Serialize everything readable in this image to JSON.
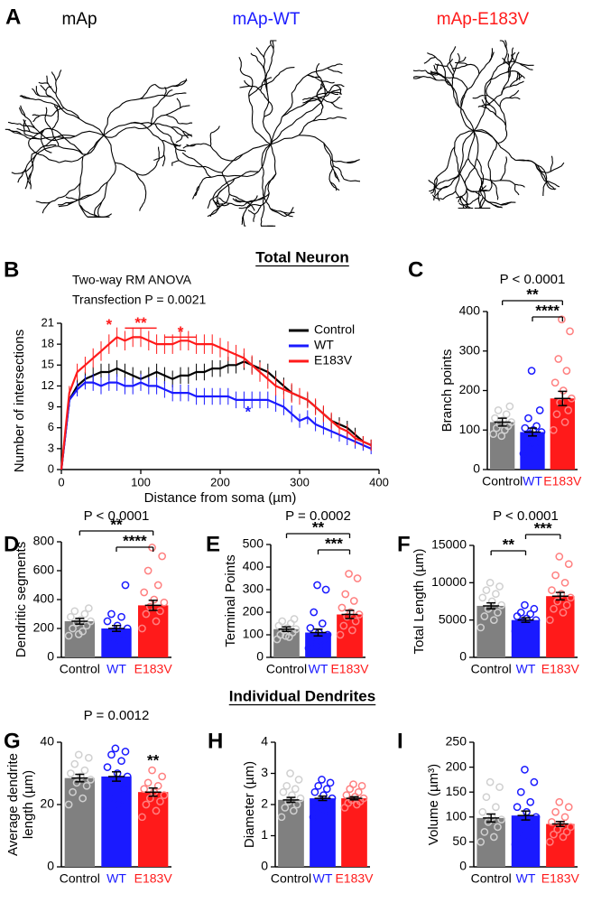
{
  "neurons": {
    "panel": "A",
    "labels": [
      "mAp",
      "mAp-WT",
      "mAp-E183V"
    ],
    "label_colors": [
      "#000000",
      "#1a1aff",
      "#ff1a1a"
    ]
  },
  "section_titles": [
    "Total Neuron",
    "Individual Dendrites"
  ],
  "chart_data": [
    {
      "type": "line",
      "panel": "B",
      "xlabel": "Distance from soma (µm)",
      "ylabel": "Number of intersections",
      "annotations_text": [
        "Two-way RM ANOVA",
        "Transfection P = 0.0021"
      ],
      "x": [
        0,
        10,
        20,
        30,
        40,
        50,
        60,
        70,
        80,
        90,
        100,
        110,
        120,
        130,
        140,
        150,
        160,
        170,
        180,
        190,
        200,
        210,
        220,
        230,
        240,
        250,
        260,
        270,
        280,
        290,
        300,
        310,
        320,
        330,
        340,
        350,
        360,
        370,
        380,
        390
      ],
      "xlim": [
        0,
        400
      ],
      "xticks": [
        0,
        100,
        200,
        300,
        400
      ],
      "ylim": [
        0,
        21
      ],
      "yticks": [
        0,
        3,
        6,
        9,
        12,
        15,
        18,
        21
      ],
      "legend": "upper right",
      "series": [
        {
          "name": "Control",
          "color": "#000000",
          "values": [
            0,
            10,
            12,
            13,
            13.5,
            14,
            14,
            14.5,
            14,
            13.5,
            13,
            13.5,
            14,
            13.5,
            13,
            13.5,
            13.5,
            14,
            14,
            14.5,
            14.5,
            15,
            15,
            15.5,
            15,
            14.5,
            14,
            13,
            12,
            11,
            10.5,
            10,
            9,
            8,
            7,
            6.5,
            6,
            5,
            4,
            3.5
          ],
          "errors": [
            0,
            1,
            1,
            1,
            1.2,
            1.2,
            1.2,
            1.2,
            1.2,
            1.2,
            1.2,
            1.2,
            1.2,
            1.2,
            1.2,
            1.2,
            1.2,
            1.2,
            1.2,
            1.2,
            1.2,
            1.2,
            1.2,
            1.2,
            1.2,
            1.2,
            1.2,
            1.2,
            1.2,
            1.2,
            1,
            1,
            1,
            1,
            1,
            1,
            1,
            1,
            0.8,
            0.8
          ]
        },
        {
          "name": "WT",
          "color": "#1a1aff",
          "values": [
            0,
            10,
            11.5,
            12.5,
            12.5,
            12,
            12.5,
            12.5,
            12,
            12,
            12.5,
            12,
            12,
            11.5,
            11,
            11,
            11,
            10.5,
            10.5,
            10.5,
            10.5,
            10.5,
            10,
            10,
            10,
            10,
            10,
            9.5,
            9,
            8,
            7,
            7.5,
            6.5,
            6,
            5.5,
            5,
            4.5,
            4,
            3.5,
            3
          ],
          "errors": [
            0,
            1,
            1,
            1,
            1.2,
            1.2,
            1.2,
            1.2,
            1.2,
            1.2,
            1.2,
            1.2,
            1.2,
            1.2,
            1.2,
            1.2,
            1.2,
            1.2,
            1.2,
            1.2,
            1.2,
            1.2,
            1.2,
            1.2,
            1.2,
            1.2,
            1.2,
            1.2,
            1.2,
            1.2,
            1,
            1,
            1,
            1,
            1,
            1,
            1,
            1,
            0.8,
            0.8
          ]
        },
        {
          "name": "E183V",
          "color": "#ff1a1a",
          "values": [
            0,
            11,
            14,
            15,
            16,
            17,
            18,
            19,
            18.5,
            19,
            19,
            18.5,
            18,
            18,
            18,
            18.5,
            18.5,
            18,
            18,
            18,
            17.5,
            17,
            16.5,
            16,
            15,
            14,
            13,
            12,
            11.5,
            11,
            10.5,
            10,
            9,
            8,
            7,
            6,
            5.5,
            4.5,
            4,
            3.5
          ],
          "errors": [
            0,
            1,
            1.2,
            1.2,
            1.4,
            1.4,
            1.4,
            1.4,
            1.4,
            1.4,
            1.4,
            1.4,
            1.4,
            1.4,
            1.4,
            1.4,
            1.4,
            1.4,
            1.4,
            1.4,
            1.4,
            1.4,
            1.4,
            1.4,
            1.4,
            1.4,
            1.4,
            1.4,
            1.4,
            1.4,
            1.2,
            1.2,
            1.2,
            1.2,
            1.2,
            1,
            1,
            1,
            0.8,
            0.8
          ]
        }
      ],
      "significance": [
        {
          "label": "*",
          "x1": 60,
          "x2": 60,
          "y": 20,
          "color": "#ff1a1a"
        },
        {
          "label": "**",
          "x1": 80,
          "x2": 120,
          "y": 20.3,
          "color": "#ff1a1a"
        },
        {
          "label": "*",
          "x1": 130,
          "x2": 170,
          "y": 19,
          "color": "#ff1a1a"
        },
        {
          "label": "*",
          "x1": 235,
          "x2": 235,
          "y": 7.5,
          "color": "#1a1aff"
        }
      ]
    },
    {
      "type": "bar",
      "panel": "C",
      "ylabel": "Branch points",
      "p_text": "P < 0.0001",
      "categories": [
        "Control",
        "WT",
        "E183V"
      ],
      "colors": [
        "#808080",
        "#1a1aff",
        "#ff1a1a"
      ],
      "label_colors": [
        "#000000",
        "#1a1aff",
        "#ff1a1a"
      ],
      "point_colors": [
        "#d0d0d0",
        "#1a1aff",
        "#ff8080"
      ],
      "values": [
        120,
        95,
        180
      ],
      "errors": [
        10,
        10,
        18
      ],
      "points": [
        [
          90,
          100,
          105,
          110,
          115,
          120,
          125,
          130,
          140,
          150,
          160,
          85
        ],
        [
          40,
          55,
          70,
          80,
          90,
          95,
          100,
          105,
          110,
          130,
          150,
          250
        ],
        [
          100,
          120,
          140,
          150,
          170,
          180,
          200,
          220,
          250,
          280,
          350,
          380
        ]
      ],
      "ylim": [
        0,
        400
      ],
      "yticks": [
        0,
        100,
        200,
        300,
        400
      ],
      "brackets": [
        {
          "from": 0,
          "to": 2,
          "label": "**"
        },
        {
          "from": 1,
          "to": 2,
          "label": "****"
        }
      ]
    },
    {
      "type": "bar",
      "panel": "D",
      "ylabel": "Dendritic segments",
      "p_text": "P < 0.0001",
      "categories": [
        "Control",
        "WT",
        "E183V"
      ],
      "colors": [
        "#808080",
        "#1a1aff",
        "#ff1a1a"
      ],
      "label_colors": [
        "#000000",
        "#1a1aff",
        "#ff1a1a"
      ],
      "point_colors": [
        "#d0d0d0",
        "#1a1aff",
        "#ff8080"
      ],
      "values": [
        250,
        200,
        360
      ],
      "errors": [
        20,
        20,
        35
      ],
      "points": [
        [
          150,
          180,
          200,
          220,
          240,
          250,
          260,
          280,
          300,
          320,
          340,
          160
        ],
        [
          100,
          120,
          140,
          160,
          180,
          200,
          220,
          250,
          280,
          300,
          500,
          140
        ],
        [
          200,
          250,
          300,
          320,
          350,
          380,
          400,
          450,
          500,
          600,
          700,
          760
        ]
      ],
      "ylim": [
        0,
        800
      ],
      "yticks": [
        0,
        200,
        400,
        600,
        800
      ],
      "brackets": [
        {
          "from": 0,
          "to": 2,
          "label": "**"
        },
        {
          "from": 1,
          "to": 2,
          "label": "****"
        }
      ]
    },
    {
      "type": "bar",
      "panel": "E",
      "ylabel": "Terminal Points",
      "p_text": "P = 0.0002",
      "categories": [
        "Control",
        "WT",
        "E183V"
      ],
      "colors": [
        "#808080",
        "#1a1aff",
        "#ff1a1a"
      ],
      "label_colors": [
        "#000000",
        "#1a1aff",
        "#ff1a1a"
      ],
      "point_colors": [
        "#d0d0d0",
        "#1a1aff",
        "#ff8080"
      ],
      "values": [
        125,
        110,
        190
      ],
      "errors": [
        10,
        15,
        18
      ],
      "points": [
        [
          80,
          90,
          100,
          110,
          120,
          125,
          130,
          140,
          150,
          160,
          170,
          95
        ],
        [
          40,
          50,
          70,
          80,
          90,
          100,
          110,
          130,
          150,
          200,
          300,
          320
        ],
        [
          100,
          120,
          140,
          160,
          180,
          190,
          200,
          220,
          250,
          280,
          350,
          370
        ]
      ],
      "ylim": [
        0,
        500
      ],
      "yticks": [
        0,
        100,
        200,
        300,
        400,
        500
      ],
      "brackets": [
        {
          "from": 0,
          "to": 2,
          "label": "**"
        },
        {
          "from": 1,
          "to": 2,
          "label": "***"
        }
      ]
    },
    {
      "type": "bar",
      "panel": "F",
      "ylabel": "Total Length (µm)",
      "p_text": "P < 0.0001",
      "categories": [
        "Control",
        "WT",
        "E183V"
      ],
      "colors": [
        "#808080",
        "#1a1aff",
        "#ff1a1a"
      ],
      "label_colors": [
        "#000000",
        "#1a1aff",
        "#ff1a1a"
      ],
      "point_colors": [
        "#d0d0d0",
        "#1a1aff",
        "#ff8080"
      ],
      "values": [
        6900,
        5000,
        8200
      ],
      "errors": [
        400,
        300,
        500
      ],
      "points": [
        [
          4000,
          5000,
          5500,
          6000,
          6500,
          7000,
          7500,
          8000,
          8500,
          9000,
          9500,
          10000
        ],
        [
          3500,
          4000,
          4200,
          4500,
          4800,
          5000,
          5200,
          5500,
          5800,
          6000,
          6500,
          7000
        ],
        [
          5000,
          6000,
          6500,
          7000,
          7500,
          8000,
          8500,
          9000,
          10000,
          11000,
          12500,
          13500
        ]
      ],
      "ylim": [
        0,
        15000
      ],
      "yticks": [
        0,
        5000,
        10000,
        15000
      ],
      "brackets": [
        {
          "from": 1,
          "to": 2,
          "label": "***"
        },
        {
          "from": 0,
          "to": 1,
          "label": "**"
        }
      ]
    },
    {
      "type": "bar",
      "panel": "G",
      "ylabel": [
        "Average dendrite",
        "length (µm)"
      ],
      "p_text": "P = 0.0012",
      "categories": [
        "Control",
        "WT",
        "E183V"
      ],
      "colors": [
        "#808080",
        "#1a1aff",
        "#ff1a1a"
      ],
      "label_colors": [
        "#000000",
        "#1a1aff",
        "#ff1a1a"
      ],
      "point_colors": [
        "#d0d0d0",
        "#1a1aff",
        "#ff8080"
      ],
      "values": [
        28.5,
        29,
        24
      ],
      "errors": [
        1.2,
        1.5,
        1.3
      ],
      "points": [
        [
          20,
          22,
          24,
          26,
          27,
          28,
          29,
          30,
          31,
          33,
          35,
          36
        ],
        [
          18,
          20,
          22,
          25,
          27,
          29,
          30,
          32,
          34,
          36,
          37,
          38
        ],
        [
          16,
          18,
          20,
          21,
          22,
          23,
          24,
          25,
          26,
          27,
          29,
          31
        ]
      ],
      "ylim": [
        0,
        40
      ],
      "yticks": [
        0,
        20,
        40
      ],
      "brackets": [
        {
          "from": 2,
          "to": 2,
          "label": "**"
        }
      ]
    },
    {
      "type": "bar",
      "panel": "H",
      "ylabel": "Diameter (µm)",
      "categories": [
        "Control",
        "WT",
        "E183V"
      ],
      "colors": [
        "#808080",
        "#1a1aff",
        "#ff1a1a"
      ],
      "label_colors": [
        "#000000",
        "#1a1aff",
        "#ff1a1a"
      ],
      "point_colors": [
        "#d0d0d0",
        "#1a1aff",
        "#ff8080"
      ],
      "values": [
        2.15,
        2.2,
        2.2
      ],
      "errors": [
        0.08,
        0.07,
        0.05
      ],
      "points": [
        [
          1.6,
          1.8,
          1.9,
          2.0,
          2.1,
          2.2,
          2.3,
          2.4,
          2.5,
          2.6,
          2.8,
          3.0
        ],
        [
          1.6,
          1.8,
          1.9,
          2.0,
          2.1,
          2.2,
          2.3,
          2.4,
          2.5,
          2.6,
          2.7,
          2.8
        ],
        [
          1.9,
          2.0,
          2.05,
          2.1,
          2.15,
          2.2,
          2.25,
          2.3,
          2.4,
          2.5,
          2.6,
          2.65
        ]
      ],
      "ylim": [
        0,
        4
      ],
      "yticks": [
        0,
        1,
        2,
        3,
        4
      ],
      "brackets": []
    },
    {
      "type": "bar",
      "panel": "I",
      "ylabel": "Volume (µm³)",
      "categories": [
        "Control",
        "WT",
        "E183V"
      ],
      "colors": [
        "#808080",
        "#1a1aff",
        "#ff1a1a"
      ],
      "label_colors": [
        "#000000",
        "#1a1aff",
        "#ff1a1a"
      ],
      "point_colors": [
        "#d0d0d0",
        "#1a1aff",
        "#ff8080"
      ],
      "values": [
        98,
        103,
        86
      ],
      "errors": [
        8,
        9,
        5
      ],
      "points": [
        [
          50,
          60,
          70,
          80,
          90,
          95,
          100,
          110,
          120,
          140,
          160,
          170
        ],
        [
          45,
          60,
          70,
          80,
          90,
          100,
          110,
          120,
          130,
          150,
          170,
          195
        ],
        [
          50,
          60,
          65,
          70,
          75,
          80,
          85,
          90,
          100,
          110,
          120,
          130
        ]
      ],
      "ylim": [
        0,
        250
      ],
      "yticks": [
        0,
        50,
        100,
        150,
        200,
        250
      ],
      "brackets": []
    }
  ]
}
